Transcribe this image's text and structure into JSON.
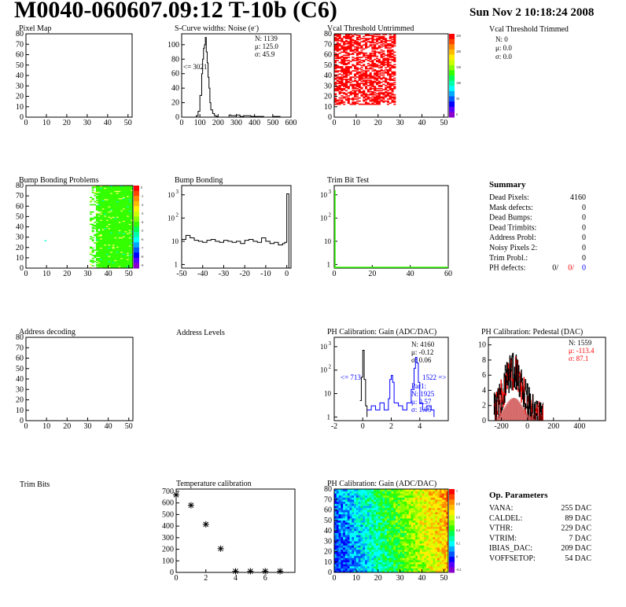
{
  "header": {
    "title": "M0040-060607.09:12 T-10b (C6)",
    "date": "Sun Nov  2 10:18:24 2008"
  },
  "chart_data": [
    {
      "id": "pixel-map",
      "type": "heatmap",
      "title": "Pixel Map",
      "xlim": [
        0,
        52
      ],
      "ylim": [
        0,
        80
      ],
      "xticks": [
        0,
        10,
        20,
        30,
        40,
        50
      ],
      "yticks": [
        0,
        10,
        20,
        30,
        40,
        50,
        60,
        70,
        80
      ],
      "empty": true
    },
    {
      "id": "scurve-noise",
      "type": "line",
      "title": "S-Curve widths: Noise (e",
      "title_sup": "-",
      "title_tail": ")",
      "xlim": [
        0,
        600
      ],
      "ylim": [
        0,
        115
      ],
      "xticks": [
        0,
        100,
        200,
        300,
        400,
        500,
        600
      ],
      "yticks": [
        0,
        20,
        40,
        60,
        80,
        100
      ],
      "x": [
        60,
        80,
        90,
        100,
        110,
        115,
        120,
        125,
        130,
        135,
        140,
        145,
        150,
        155,
        160,
        170,
        180,
        190,
        200,
        260,
        270,
        300,
        320,
        340,
        380,
        420,
        450,
        500,
        540
      ],
      "y": [
        0,
        2,
        8,
        30,
        60,
        80,
        95,
        100,
        110,
        90,
        75,
        55,
        40,
        20,
        10,
        5,
        2,
        1,
        0,
        3,
        2,
        3,
        1,
        2,
        1,
        1,
        0,
        1,
        0
      ],
      "stats": [
        "N: 1139",
        "μ: 125.0",
        "σ: 45.9"
      ],
      "annotation": "<= 3021"
    },
    {
      "id": "vcal-untrimmed",
      "type": "heatmap",
      "title": "Vcal Threshold Untrimmed",
      "xlim": [
        0,
        52
      ],
      "ylim": [
        0,
        80
      ],
      "xticks": [
        0,
        10,
        20,
        30,
        40,
        50
      ],
      "yticks": [
        0,
        10,
        20,
        30,
        40,
        50,
        60,
        70,
        80
      ],
      "filled_columns": [
        0,
        28
      ],
      "filled_rows": [
        12,
        80
      ],
      "fill_color": "#ff0000",
      "zticks": [
        "250",
        "200",
        "150",
        "100",
        "50",
        "0"
      ]
    },
    {
      "id": "bump-bonding-problems",
      "type": "heatmap",
      "title": "Bump Bonding Problems",
      "xlim": [
        0,
        52
      ],
      "ylim": [
        0,
        80
      ],
      "xticks": [
        0,
        10,
        20,
        30,
        40,
        50
      ],
      "yticks": [
        0,
        10,
        20,
        30,
        40,
        50,
        60,
        70,
        80
      ],
      "filled_columns": [
        34,
        52
      ],
      "fill_color": "#33ff00",
      "zticks": [
        "0",
        "-1",
        "-2",
        "-3",
        "-4",
        "-5",
        "-6",
        "-7",
        "-8",
        "-9"
      ]
    },
    {
      "id": "bump-bonding",
      "type": "line",
      "title": "Bump Bonding",
      "log_y": true,
      "xlim": [
        -50,
        2
      ],
      "ylim": [
        0.7,
        2500
      ],
      "xticks": [
        -50,
        -40,
        -30,
        -20,
        -10,
        0
      ],
      "yticks": [
        1,
        10,
        100,
        1000
      ],
      "x": [
        -50,
        -48,
        -46,
        -44,
        -42,
        -40,
        -38,
        -36,
        -34,
        -32,
        -30,
        -28,
        -26,
        -24,
        -22,
        -20,
        -18,
        -16,
        -14,
        -12,
        -10,
        -8,
        -6,
        -4,
        -2,
        -1,
        0,
        1
      ],
      "y": [
        12,
        18,
        14,
        11,
        10,
        9,
        11,
        12,
        10,
        9,
        11,
        10,
        9,
        10,
        8,
        11,
        12,
        10,
        9,
        14,
        10,
        8,
        9,
        7,
        8,
        9,
        1100,
        0.7
      ]
    },
    {
      "id": "trim-bit-test",
      "type": "line",
      "title": "Trim Bit Test",
      "log_y": true,
      "xlim": [
        0,
        60
      ],
      "ylim": [
        0.7,
        2500
      ],
      "xticks": [
        0,
        20,
        40,
        60
      ],
      "yticks": [
        1,
        10,
        100,
        1000
      ]
    },
    {
      "id": "address-decoding",
      "type": "heatmap",
      "title": "Address decoding",
      "xlim": [
        0,
        52
      ],
      "ylim": [
        0,
        80
      ],
      "xticks": [
        0,
        10,
        20,
        30,
        40,
        50
      ],
      "yticks": [
        0,
        10,
        20,
        30,
        40,
        50,
        60,
        70,
        80
      ],
      "empty": true
    },
    {
      "id": "ph-gain",
      "type": "line",
      "title": "PH Calibration: Gain (ADC/DAC)",
      "log_y": true,
      "xlim": [
        -2,
        6
      ],
      "ylim": [
        0.7,
        2500
      ],
      "xticks": [
        -2,
        0,
        2,
        4
      ],
      "yticks": [
        1,
        10,
        100,
        1000
      ],
      "series": [
        {
          "name": "black",
          "color": "#000000",
          "x": [
            -0.2,
            -0.1,
            0,
            0.1,
            0.2,
            0.3
          ],
          "y": [
            5,
            50,
            700,
            40,
            3,
            1
          ]
        },
        {
          "name": "blue",
          "color": "#0000ff",
          "x": [
            0.3,
            0.6,
            0.9,
            1.2,
            1.5,
            1.8,
            1.9,
            2.0,
            2.1,
            2.2,
            2.5,
            2.8,
            3.1,
            3.4,
            3.6,
            3.7,
            3.8,
            3.9,
            4.0,
            4.2,
            4.5,
            4.8,
            5.0
          ],
          "y": [
            2,
            3,
            2,
            4,
            2,
            6,
            40,
            60,
            30,
            4,
            3,
            2,
            4,
            15,
            120,
            350,
            200,
            30,
            4,
            2,
            3,
            2,
            1
          ]
        }
      ],
      "stats": [
        "N: 4160",
        "μ: -0.12",
        "σ: 0.06"
      ],
      "stats2": [
        "Par1:",
        "N: 1925",
        "μ: 2.57",
        "σ: 1.06"
      ],
      "annotation_left": "<= 713",
      "annotation_right": "1522 =>"
    },
    {
      "id": "ph-pedestal",
      "type": "line",
      "title": "PH Calibration: Pedestal (DAC)",
      "xlim": [
        -300,
        600
      ],
      "ylim": [
        0,
        11
      ],
      "xticks": [
        -200,
        0,
        200,
        400
      ],
      "yticks": [
        0,
        2,
        4,
        6,
        8,
        10
      ],
      "stats": [
        "N: 1559",
        "μ: -113.4",
        "σ: 87.1"
      ],
      "stats_color": "#ff0000"
    },
    {
      "id": "temperature-calibration",
      "type": "scatter",
      "title": "Temperature calibration",
      "xlim": [
        0,
        8
      ],
      "ylim": [
        0,
        720
      ],
      "xticks": [
        0,
        2,
        4,
        6
      ],
      "yticks": [
        0,
        100,
        200,
        300,
        400,
        500,
        600,
        700
      ],
      "x": [
        0,
        1,
        2,
        3,
        4,
        5,
        6,
        7
      ],
      "y": [
        670,
        580,
        415,
        205,
        10,
        10,
        10,
        10
      ]
    },
    {
      "id": "ph-gain-map",
      "type": "heatmap",
      "title": "PH Calibration: Gain (ADC/DAC)",
      "xlim": [
        0,
        52
      ],
      "ylim": [
        0,
        80
      ],
      "xticks": [
        0,
        10,
        20,
        30,
        40,
        50
      ],
      "yticks": [
        0,
        10,
        20,
        30,
        40,
        50,
        60,
        70,
        80
      ],
      "zticks": [
        "1",
        "0.8",
        "0.6",
        "0.4",
        "0.2",
        "0",
        "-0.2"
      ]
    }
  ],
  "labels": {
    "address_levels": "Address Levels",
    "trim_bits": "Trim Bits",
    "vcal_trimmed_title": "Vcal Threshold Trimmed",
    "vcal_trimmed_stats": [
      "N:    0",
      "μ:  0.0",
      "σ:  0.0"
    ]
  },
  "summary": {
    "title": "Summary",
    "rows": [
      {
        "label": "Dead Pixels:",
        "value": "4160"
      },
      {
        "label": "Mask defects:",
        "value": "0"
      },
      {
        "label": "Dead Bumps:",
        "value": "0"
      },
      {
        "label": "Dead Trimbits:",
        "value": "0"
      },
      {
        "label": "Address Probl:",
        "value": "0"
      },
      {
        "label": "Noisy Pixels 2:",
        "value": "0"
      },
      {
        "label": "Trim Probl.:",
        "value": "0"
      }
    ],
    "ph_defects": {
      "label": "PH defects:",
      "v1": "0/",
      "v2": "0/",
      "v3": "0"
    }
  },
  "op_parameters": {
    "title": "Op. Parameters",
    "rows": [
      {
        "label": "VANA:",
        "value": "255 DAC"
      },
      {
        "label": "CALDEL:",
        "value": "89 DAC"
      },
      {
        "label": "VTHR:",
        "value": "229 DAC"
      },
      {
        "label": "VTRIM:",
        "value": "7 DAC"
      },
      {
        "label": "IBIAS_DAC:",
        "value": "209 DAC"
      },
      {
        "label": "VOFFSETOP:",
        "value": "54 DAC"
      }
    ]
  }
}
